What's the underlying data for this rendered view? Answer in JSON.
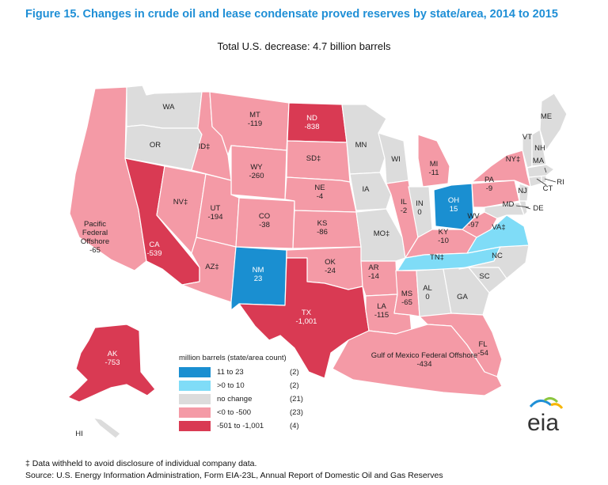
{
  "title": "Figure 15. Changes in crude oil and lease condensate proved reserves by state/area, 2014 to 2015",
  "subtitle": "Total U.S. decrease: 4.7 billion barrels",
  "colors": {
    "dark_blue": "#1a8fd1",
    "light_blue": "#7fdcf7",
    "no_change": "#dcdcdc",
    "light_red": "#f49aa6",
    "dark_red": "#d93a53",
    "border": "#ffffff"
  },
  "map_data": {
    "regions": [
      {
        "id": "WA",
        "label": "WA",
        "value": "",
        "category": "no_change"
      },
      {
        "id": "OR",
        "label": "OR",
        "value": "",
        "category": "no_change"
      },
      {
        "id": "CA",
        "label": "CA",
        "value": "-539",
        "category": "dark_red"
      },
      {
        "id": "NV",
        "label": "NV‡",
        "value": "",
        "category": "light_red"
      },
      {
        "id": "ID",
        "label": "ID‡",
        "value": "",
        "category": "light_red"
      },
      {
        "id": "MT",
        "label": "MT",
        "value": "-119",
        "category": "light_red"
      },
      {
        "id": "WY",
        "label": "WY",
        "value": "-260",
        "category": "light_red"
      },
      {
        "id": "UT",
        "label": "UT",
        "value": "-194",
        "category": "light_red"
      },
      {
        "id": "AZ",
        "label": "AZ‡",
        "value": "",
        "category": "light_red"
      },
      {
        "id": "CO",
        "label": "CO",
        "value": "-38",
        "category": "light_red"
      },
      {
        "id": "NM",
        "label": "NM",
        "value": "23",
        "category": "dark_blue"
      },
      {
        "id": "ND",
        "label": "ND",
        "value": "-838",
        "category": "dark_red"
      },
      {
        "id": "SD",
        "label": "SD‡",
        "value": "",
        "category": "light_red"
      },
      {
        "id": "NE",
        "label": "NE",
        "value": "-4",
        "category": "light_red"
      },
      {
        "id": "KS",
        "label": "KS",
        "value": "-86",
        "category": "light_red"
      },
      {
        "id": "OK",
        "label": "OK",
        "value": "-24",
        "category": "light_red"
      },
      {
        "id": "TX",
        "label": "TX",
        "value": "-1,001",
        "category": "dark_red"
      },
      {
        "id": "MN",
        "label": "MN",
        "value": "",
        "category": "no_change"
      },
      {
        "id": "IA",
        "label": "IA",
        "value": "",
        "category": "no_change"
      },
      {
        "id": "MO",
        "label": "MO‡",
        "value": "",
        "category": "no_change"
      },
      {
        "id": "AR",
        "label": "AR",
        "value": "-14",
        "category": "light_red"
      },
      {
        "id": "LA",
        "label": "LA",
        "value": "-115",
        "category": "light_red"
      },
      {
        "id": "WI",
        "label": "WI",
        "value": "",
        "category": "no_change"
      },
      {
        "id": "IL",
        "label": "IL",
        "value": "-2",
        "category": "light_red"
      },
      {
        "id": "MI",
        "label": "MI",
        "value": "-11",
        "category": "light_red"
      },
      {
        "id": "IN",
        "label": "IN",
        "value": "0",
        "category": "no_change"
      },
      {
        "id": "OH",
        "label": "OH",
        "value": "15",
        "category": "dark_blue"
      },
      {
        "id": "KY",
        "label": "KY",
        "value": "-10",
        "category": "light_red"
      },
      {
        "id": "TN",
        "label": "TN‡",
        "value": "",
        "category": "light_blue"
      },
      {
        "id": "MS",
        "label": "MS",
        "value": "-65",
        "category": "light_red"
      },
      {
        "id": "AL",
        "label": "AL",
        "value": "0",
        "category": "no_change"
      },
      {
        "id": "GA",
        "label": "GA",
        "value": "",
        "category": "no_change"
      },
      {
        "id": "FL",
        "label": "FL",
        "value": "-54",
        "category": "light_red"
      },
      {
        "id": "SC",
        "label": "SC",
        "value": "",
        "category": "no_change"
      },
      {
        "id": "NC",
        "label": "NC",
        "value": "",
        "category": "no_change"
      },
      {
        "id": "VA",
        "label": "VA‡",
        "value": "",
        "category": "light_blue"
      },
      {
        "id": "WV",
        "label": "WV",
        "value": "-97",
        "category": "light_red"
      },
      {
        "id": "PA",
        "label": "PA",
        "value": "-9",
        "category": "light_red"
      },
      {
        "id": "NY",
        "label": "NY‡",
        "value": "",
        "category": "light_red"
      },
      {
        "id": "MD",
        "label": "MD",
        "value": "",
        "category": "no_change"
      },
      {
        "id": "DE",
        "label": "DE",
        "value": "",
        "category": "no_change"
      },
      {
        "id": "NJ",
        "label": "NJ",
        "value": "",
        "category": "no_change"
      },
      {
        "id": "CT",
        "label": "CT",
        "value": "",
        "category": "no_change"
      },
      {
        "id": "RI",
        "label": "RI",
        "value": "",
        "category": "no_change"
      },
      {
        "id": "MA",
        "label": "MA",
        "value": "",
        "category": "no_change"
      },
      {
        "id": "VT",
        "label": "VT",
        "value": "",
        "category": "no_change"
      },
      {
        "id": "NH",
        "label": "NH",
        "value": "",
        "category": "no_change"
      },
      {
        "id": "ME",
        "label": "ME",
        "value": "",
        "category": "no_change"
      },
      {
        "id": "AK",
        "label": "AK",
        "value": "-753",
        "category": "dark_red"
      },
      {
        "id": "HI",
        "label": "HI",
        "value": "",
        "category": "no_change"
      },
      {
        "id": "PACIFIC",
        "label": "Pacific Federal Offshore",
        "value": "-65",
        "category": "light_red"
      },
      {
        "id": "GULF",
        "label": "Gulf of Mexico Federal Offshore",
        "value": "-434",
        "category": "light_red"
      }
    ]
  },
  "legend": {
    "title": "million barrels (state/area count)",
    "items": [
      {
        "label": "11 to 23",
        "count": "(2)",
        "color": "#1a8fd1"
      },
      {
        "label": ">0 to 10",
        "count": "(2)",
        "color": "#7fdcf7"
      },
      {
        "label": "no change",
        "count": "(21)",
        "color": "#dcdcdc"
      },
      {
        "label": "<0 to -500",
        "count": "(23)",
        "color": "#f49aa6"
      },
      {
        "label": "-501 to -1,001",
        "count": "(4)",
        "color": "#d93a53"
      }
    ]
  },
  "footnotes": {
    "withheld": "‡ Data withheld to avoid disclosure of individual company data.",
    "source": "Source: U.S. Energy Information Administration, Form EIA-23L, Annual Report of Domestic Oil and Gas Reserves"
  },
  "logo": {
    "text": "eia",
    "icon": "eia-logo-icon"
  }
}
